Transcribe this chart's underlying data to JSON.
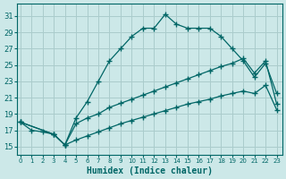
{
  "xlabel": "Humidex (Indice chaleur)",
  "bg_color": "#cce8e8",
  "grid_color": "#aacccc",
  "line_color": "#006666",
  "x_ticks": [
    0,
    1,
    2,
    3,
    4,
    5,
    6,
    7,
    8,
    9,
    10,
    11,
    12,
    13,
    14,
    15,
    16,
    17,
    18,
    19,
    20,
    21,
    22,
    23
  ],
  "y_ticks": [
    15,
    17,
    19,
    21,
    23,
    25,
    27,
    29,
    31
  ],
  "ylim": [
    14.0,
    32.5
  ],
  "xlim": [
    -0.3,
    23.5
  ],
  "curve1_x": [
    0,
    1,
    2,
    3,
    4,
    5,
    6,
    7,
    8,
    9,
    10,
    11,
    12,
    13,
    14,
    15,
    16,
    17,
    18,
    19,
    20,
    21,
    22,
    23
  ],
  "curve1_y": [
    18.0,
    17.0,
    16.8,
    16.5,
    15.2,
    18.5,
    20.5,
    23.0,
    25.5,
    27.0,
    28.5,
    29.5,
    29.5,
    31.2,
    30.0,
    29.5,
    29.5,
    29.5,
    28.5,
    27.0,
    25.5,
    23.5,
    25.2,
    21.5
  ],
  "curve2_x": [
    0,
    3,
    4,
    5,
    6,
    7,
    8,
    9,
    10,
    11,
    12,
    13,
    14,
    15,
    16,
    17,
    18,
    19,
    20,
    21,
    22,
    23
  ],
  "curve2_y": [
    18.0,
    16.5,
    15.2,
    17.8,
    18.5,
    19.0,
    19.8,
    20.3,
    20.8,
    21.3,
    21.8,
    22.3,
    22.8,
    23.3,
    23.8,
    24.3,
    24.8,
    25.2,
    25.8,
    24.0,
    25.5,
    20.2
  ],
  "curve3_x": [
    0,
    3,
    4,
    5,
    6,
    7,
    8,
    9,
    10,
    11,
    12,
    13,
    14,
    15,
    16,
    17,
    18,
    19,
    20,
    21,
    22,
    23
  ],
  "curve3_y": [
    18.0,
    16.5,
    15.2,
    15.8,
    16.3,
    16.8,
    17.3,
    17.8,
    18.2,
    18.6,
    19.0,
    19.4,
    19.8,
    20.2,
    20.5,
    20.8,
    21.2,
    21.5,
    21.8,
    21.5,
    22.5,
    19.5
  ]
}
